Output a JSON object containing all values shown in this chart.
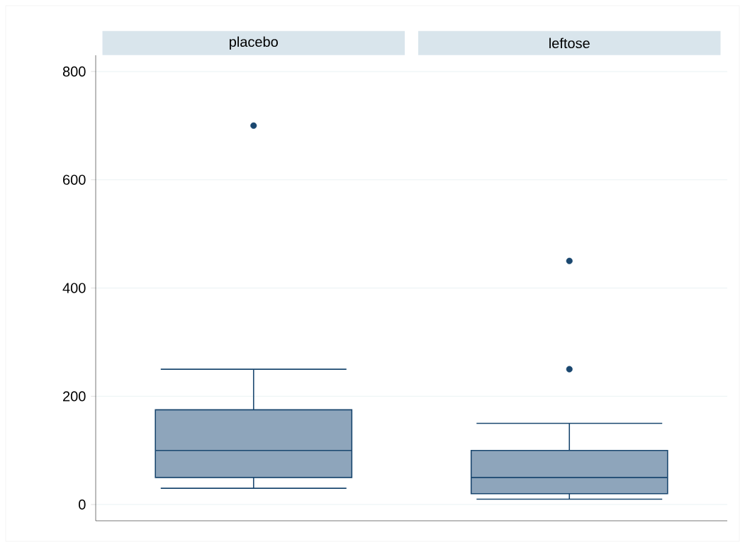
{
  "chart_data": {
    "type": "box",
    "categories": [
      "placebo",
      "leftose"
    ],
    "series": [
      {
        "color": "#8ea5bb",
        "boxes": [
          {
            "low": 30,
            "q1": 50,
            "median": 100,
            "q3": 175,
            "high": 250,
            "outliers": [
              700
            ]
          },
          {
            "low": 10,
            "q1": 20,
            "median": 50,
            "q3": 100,
            "high": 150,
            "outliers": [
              250,
              450
            ]
          }
        ]
      }
    ],
    "ylim": [
      -30,
      830
    ],
    "yticks": [
      0,
      200,
      400,
      600,
      800
    ],
    "grid": "y"
  }
}
